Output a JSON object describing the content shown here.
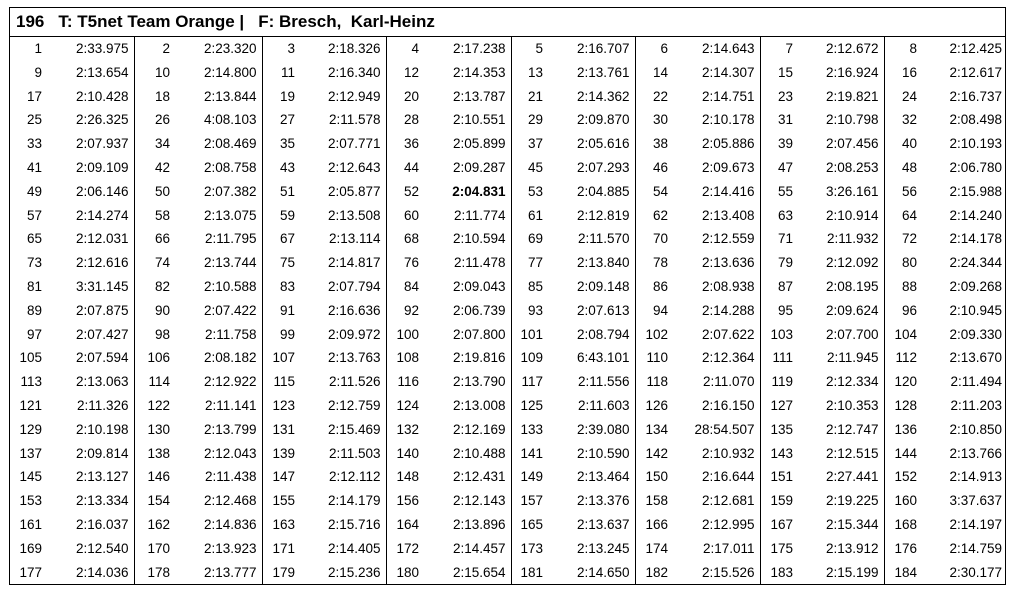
{
  "header": {
    "number": "196",
    "team": "T: T5net Team Orange |",
    "driver": "F: Bresch,  Karl-Heinz"
  },
  "best_lap": "52",
  "rows": [
    [
      "1",
      "2:33.975",
      "2",
      "2:23.320",
      "3",
      "2:18.326",
      "4",
      "2:17.238",
      "5",
      "2:16.707",
      "6",
      "2:14.643",
      "7",
      "2:12.672",
      "8",
      "2:12.425"
    ],
    [
      "9",
      "2:13.654",
      "10",
      "2:14.800",
      "11",
      "2:16.340",
      "12",
      "2:14.353",
      "13",
      "2:13.761",
      "14",
      "2:14.307",
      "15",
      "2:16.924",
      "16",
      "2:12.617"
    ],
    [
      "17",
      "2:10.428",
      "18",
      "2:13.844",
      "19",
      "2:12.949",
      "20",
      "2:13.787",
      "21",
      "2:14.362",
      "22",
      "2:14.751",
      "23",
      "2:19.821",
      "24",
      "2:16.737"
    ],
    [
      "25",
      "2:26.325",
      "26",
      "4:08.103",
      "27",
      "2:11.578",
      "28",
      "2:10.551",
      "29",
      "2:09.870",
      "30",
      "2:10.178",
      "31",
      "2:10.798",
      "32",
      "2:08.498"
    ],
    [
      "33",
      "2:07.937",
      "34",
      "2:08.469",
      "35",
      "2:07.771",
      "36",
      "2:05.899",
      "37",
      "2:05.616",
      "38",
      "2:05.886",
      "39",
      "2:07.456",
      "40",
      "2:10.193"
    ],
    [
      "41",
      "2:09.109",
      "42",
      "2:08.758",
      "43",
      "2:12.643",
      "44",
      "2:09.287",
      "45",
      "2:07.293",
      "46",
      "2:09.673",
      "47",
      "2:08.253",
      "48",
      "2:06.780"
    ],
    [
      "49",
      "2:06.146",
      "50",
      "2:07.382",
      "51",
      "2:05.877",
      "52",
      "2:04.831",
      "53",
      "2:04.885",
      "54",
      "2:14.416",
      "55",
      "3:26.161",
      "56",
      "2:15.988"
    ],
    [
      "57",
      "2:14.274",
      "58",
      "2:13.075",
      "59",
      "2:13.508",
      "60",
      "2:11.774",
      "61",
      "2:12.819",
      "62",
      "2:13.408",
      "63",
      "2:10.914",
      "64",
      "2:14.240"
    ],
    [
      "65",
      "2:12.031",
      "66",
      "2:11.795",
      "67",
      "2:13.114",
      "68",
      "2:10.594",
      "69",
      "2:11.570",
      "70",
      "2:12.559",
      "71",
      "2:11.932",
      "72",
      "2:14.178"
    ],
    [
      "73",
      "2:12.616",
      "74",
      "2:13.744",
      "75",
      "2:14.817",
      "76",
      "2:11.478",
      "77",
      "2:13.840",
      "78",
      "2:13.636",
      "79",
      "2:12.092",
      "80",
      "2:24.344"
    ],
    [
      "81",
      "3:31.145",
      "82",
      "2:10.588",
      "83",
      "2:07.794",
      "84",
      "2:09.043",
      "85",
      "2:09.148",
      "86",
      "2:08.938",
      "87",
      "2:08.195",
      "88",
      "2:09.268"
    ],
    [
      "89",
      "2:07.875",
      "90",
      "2:07.422",
      "91",
      "2:16.636",
      "92",
      "2:06.739",
      "93",
      "2:07.613",
      "94",
      "2:14.288",
      "95",
      "2:09.624",
      "96",
      "2:10.945"
    ],
    [
      "97",
      "2:07.427",
      "98",
      "2:11.758",
      "99",
      "2:09.972",
      "100",
      "2:07.800",
      "101",
      "2:08.794",
      "102",
      "2:07.622",
      "103",
      "2:07.700",
      "104",
      "2:09.330"
    ],
    [
      "105",
      "2:07.594",
      "106",
      "2:08.182",
      "107",
      "2:13.763",
      "108",
      "2:19.816",
      "109",
      "6:43.101",
      "110",
      "2:12.364",
      "111",
      "2:11.945",
      "112",
      "2:13.670"
    ],
    [
      "113",
      "2:13.063",
      "114",
      "2:12.922",
      "115",
      "2:11.526",
      "116",
      "2:13.790",
      "117",
      "2:11.556",
      "118",
      "2:11.070",
      "119",
      "2:12.334",
      "120",
      "2:11.494"
    ],
    [
      "121",
      "2:11.326",
      "122",
      "2:11.141",
      "123",
      "2:12.759",
      "124",
      "2:13.008",
      "125",
      "2:11.603",
      "126",
      "2:16.150",
      "127",
      "2:10.353",
      "128",
      "2:11.203"
    ],
    [
      "129",
      "2:10.198",
      "130",
      "2:13.799",
      "131",
      "2:15.469",
      "132",
      "2:12.169",
      "133",
      "2:39.080",
      "134",
      "28:54.507",
      "135",
      "2:12.747",
      "136",
      "2:10.850"
    ],
    [
      "137",
      "2:09.814",
      "138",
      "2:12.043",
      "139",
      "2:11.503",
      "140",
      "2:10.488",
      "141",
      "2:10.590",
      "142",
      "2:10.932",
      "143",
      "2:12.515",
      "144",
      "2:13.766"
    ],
    [
      "145",
      "2:13.127",
      "146",
      "2:11.438",
      "147",
      "2:12.112",
      "148",
      "2:12.431",
      "149",
      "2:13.464",
      "150",
      "2:16.644",
      "151",
      "2:27.441",
      "152",
      "2:14.913"
    ],
    [
      "153",
      "2:13.334",
      "154",
      "2:12.468",
      "155",
      "2:14.179",
      "156",
      "2:12.143",
      "157",
      "2:13.376",
      "158",
      "2:12.681",
      "159",
      "2:19.225",
      "160",
      "3:37.637"
    ],
    [
      "161",
      "2:16.037",
      "162",
      "2:14.836",
      "163",
      "2:15.716",
      "164",
      "2:13.896",
      "165",
      "2:13.637",
      "166",
      "2:12.995",
      "167",
      "2:15.344",
      "168",
      "2:14.197"
    ],
    [
      "169",
      "2:12.540",
      "170",
      "2:13.923",
      "171",
      "2:14.405",
      "172",
      "2:14.457",
      "173",
      "2:13.245",
      "174",
      "2:17.011",
      "175",
      "2:13.912",
      "176",
      "2:14.759"
    ],
    [
      "177",
      "2:14.036",
      "178",
      "2:13.777",
      "179",
      "2:15.236",
      "180",
      "2:15.654",
      "181",
      "2:14.650",
      "182",
      "2:15.526",
      "183",
      "2:15.199",
      "184",
      "2:30.177"
    ]
  ]
}
